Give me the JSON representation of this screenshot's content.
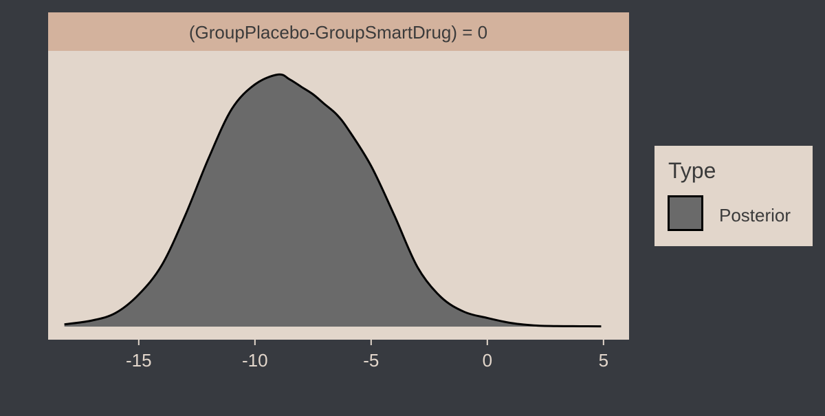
{
  "colors": {
    "page_background": "#373a40",
    "panel_background": "#e2d6cb",
    "strip_background": "#d3b29d",
    "density_fill": "#6a6a6a",
    "density_line": "#000000",
    "axis_text": "#e2d6cb",
    "strip_text": "#3b3b3b"
  },
  "chart_data": {
    "type": "area",
    "facet_label": "(GroupPlacebo-GroupSmartDrug) = 0",
    "xlabel": "",
    "ylabel": "",
    "xlim": [
      -18.9,
      6.1
    ],
    "ylim": [
      0,
      1.06
    ],
    "x_ticks": [
      -15,
      -10,
      -5,
      0,
      5
    ],
    "x_tick_labels": [
      "-15",
      "-10",
      "-5",
      "0",
      "5"
    ],
    "y_axis_shown": false,
    "grid": false,
    "legend": {
      "title": "Type",
      "position": "right",
      "entries": [
        "Posterior"
      ]
    },
    "series": [
      {
        "name": "Posterior",
        "x": [
          -18.2,
          -17.0,
          -16.0,
          -15.0,
          -14.0,
          -13.0,
          -12.0,
          -11.0,
          -10.0,
          -9.0,
          -8.5,
          -8.0,
          -7.5,
          -7.0,
          -6.5,
          -6.0,
          -5.0,
          -4.0,
          -3.0,
          -2.0,
          -1.0,
          0.0,
          1.0,
          2.0,
          3.0,
          4.0,
          4.9
        ],
        "y": [
          0.009,
          0.025,
          0.055,
          0.13,
          0.25,
          0.45,
          0.68,
          0.88,
          0.98,
          1.02,
          1.0,
          0.97,
          0.94,
          0.9,
          0.86,
          0.8,
          0.65,
          0.45,
          0.24,
          0.12,
          0.06,
          0.035,
          0.015,
          0.005,
          0.002,
          0.0015,
          0.001
        ]
      }
    ]
  }
}
